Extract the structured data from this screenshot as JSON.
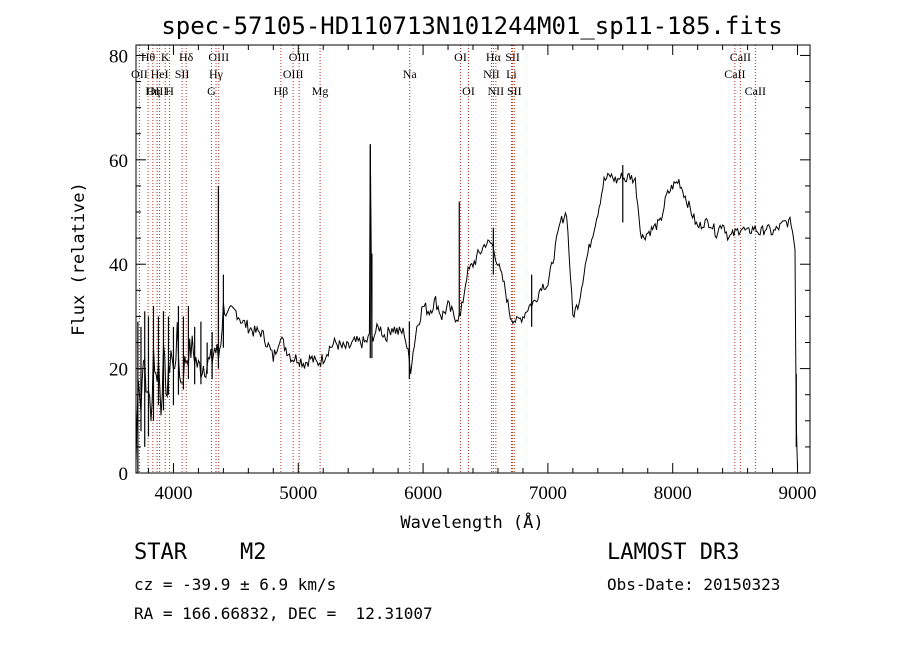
{
  "chart_data": {
    "type": "line",
    "title": "spec-57105-HD110713N101244M01_sp11-185.fits",
    "xlabel": "Wavelength (Å)",
    "ylabel": "Flux (relative)",
    "xlim": [
      3700,
      9100
    ],
    "ylim": [
      0,
      82
    ],
    "x_ticks": [
      4000,
      5000,
      6000,
      7000,
      8000,
      9000
    ],
    "y_ticks": [
      0,
      20,
      40,
      60,
      80
    ],
    "grid": false,
    "series": [
      {
        "x": [
          3700,
          3720,
          3740,
          3760,
          3780,
          3800,
          3820,
          3840,
          3860,
          3880,
          3900,
          3920,
          3950,
          3980,
          4000,
          4030,
          4060,
          4100,
          4150,
          4200,
          4250,
          4300,
          4330,
          4360,
          4380,
          4400,
          4430,
          4460,
          4500,
          4550,
          4600,
          4650,
          4700,
          4750,
          4800,
          4850,
          4900,
          4950,
          5000,
          5050,
          5100,
          5150,
          5200,
          5250,
          5300,
          5350,
          5400,
          5450,
          5500,
          5540,
          5570,
          5577,
          5590,
          5620,
          5650,
          5700,
          5750,
          5800,
          5850,
          5900,
          5950,
          6000,
          6050,
          6100,
          6150,
          6200,
          6250,
          6300,
          6350,
          6400,
          6450,
          6500,
          6550,
          6600,
          6650,
          6700,
          6750,
          6800,
          6850,
          6900,
          6950,
          7000,
          7050,
          7100,
          7150,
          7200,
          7250,
          7300,
          7350,
          7400,
          7450,
          7500,
          7550,
          7600,
          7620,
          7650,
          7700,
          7750,
          7800,
          7850,
          7900,
          7950,
          8000,
          8050,
          8100,
          8150,
          8200,
          8250,
          8300,
          8350,
          8400,
          8450,
          8500,
          8550,
          8600,
          8650,
          8700,
          8750,
          8800,
          8850,
          8900,
          8950,
          8980,
          8990,
          9000
        ],
        "y": [
          2,
          20,
          12,
          24,
          15,
          17,
          9,
          24,
          18,
          21,
          13,
          22,
          15,
          24,
          19,
          26,
          17,
          22,
          24,
          20,
          21,
          21,
          24,
          22,
          26,
          32,
          30,
          31,
          31,
          29,
          28,
          27,
          27,
          25,
          22,
          26,
          24,
          22,
          22,
          21,
          22,
          21,
          22,
          24,
          25,
          24,
          24,
          25,
          25,
          25,
          26,
          63,
          26,
          27,
          28,
          26,
          28,
          27,
          27,
          20,
          28,
          32,
          31,
          33,
          30,
          32,
          30,
          30,
          38,
          40,
          42,
          44,
          44,
          40,
          36,
          30,
          29,
          30,
          32,
          33,
          36,
          36,
          42,
          48,
          50,
          30,
          33,
          40,
          45,
          50,
          56,
          57,
          56,
          57,
          56,
          57,
          56,
          45,
          46,
          47,
          48,
          53,
          55,
          56,
          53,
          50,
          47,
          48,
          48,
          46,
          48,
          45,
          46,
          47,
          46,
          47,
          46,
          47,
          46,
          47,
          48,
          48,
          43,
          10,
          1
        ],
        "spikes": [
          [
            3715,
            0,
            29
          ],
          [
            3740,
            8,
            28
          ],
          [
            3770,
            5,
            31
          ],
          [
            3800,
            7,
            30
          ],
          [
            3840,
            10,
            32
          ],
          [
            3880,
            13,
            30
          ],
          [
            3920,
            12,
            31
          ],
          [
            3960,
            15,
            30
          ],
          [
            4000,
            13,
            28
          ],
          [
            4040,
            15,
            32
          ],
          [
            4080,
            16,
            30
          ],
          [
            4120,
            18,
            32
          ],
          [
            4170,
            17,
            28
          ],
          [
            4220,
            17,
            29
          ],
          [
            4270,
            19,
            25
          ],
          [
            4310,
            18,
            27
          ],
          [
            4360,
            20,
            55
          ],
          [
            4400,
            24,
            38
          ],
          [
            5577,
            22,
            63
          ],
          [
            5590,
            22,
            42
          ],
          [
            5890,
            18,
            29
          ],
          [
            6290,
            30,
            52
          ],
          [
            6563,
            38,
            47
          ],
          [
            6870,
            28,
            38
          ],
          [
            7600,
            48,
            59
          ],
          [
            8990,
            5,
            19
          ]
        ]
      }
    ],
    "spectral_lines": [
      {
        "label": "Hθ",
        "wave": 3797,
        "row": 1
      },
      {
        "label": "OII",
        "wave": 3727,
        "row": 2
      },
      {
        "label": "OIII",
        "wave": 3869,
        "row": 3
      },
      {
        "label": "K",
        "wave": 3934,
        "row": 1
      },
      {
        "label": "HeI",
        "wave": 3889,
        "row": 2
      },
      {
        "label": "Hη",
        "wave": 3835,
        "row": 3
      },
      {
        "label": "H",
        "wave": 3969,
        "row": 3
      },
      {
        "label": "SII",
        "wave": 4069,
        "row": 2
      },
      {
        "label": "Hδ",
        "wave": 4102,
        "row": 1
      },
      {
        "label": "OIII",
        "wave": 4363,
        "row": 1
      },
      {
        "label": "Hγ",
        "wave": 4341,
        "row": 2
      },
      {
        "label": "G",
        "wave": 4305,
        "row": 3
      },
      {
        "label": "Hβ",
        "wave": 4861,
        "row": 3
      },
      {
        "label": "OIII",
        "wave": 5007,
        "row": 1
      },
      {
        "label": "OIII",
        "wave": 4959,
        "row": 2
      },
      {
        "label": "Mg",
        "wave": 5175,
        "row": 3
      },
      {
        "label": "Na",
        "wave": 5893,
        "row": 2
      },
      {
        "label": "OI",
        "wave": 6300,
        "row": 1
      },
      {
        "label": "OI",
        "wave": 6364,
        "row": 3
      },
      {
        "label": "Hα",
        "wave": 6563,
        "row": 1
      },
      {
        "label": "NII",
        "wave": 6548,
        "row": 2
      },
      {
        "label": "NII",
        "wave": 6583,
        "row": 3
      },
      {
        "label": "SII",
        "wave": 6717,
        "row": 1
      },
      {
        "label": "Li",
        "wave": 6708,
        "row": 2
      },
      {
        "label": "SII",
        "wave": 6731,
        "row": 3
      },
      {
        "label": "CaII",
        "wave": 8542,
        "row": 1
      },
      {
        "label": "CaII",
        "wave": 8498,
        "row": 2
      },
      {
        "label": "CaII",
        "wave": 8662,
        "row": 3
      }
    ]
  },
  "info": {
    "object_class": "STAR",
    "subclass": "M2",
    "survey": "LAMOST DR3",
    "cz": "cz = -39.9 ± 6.9 km/s",
    "obs_date": "Obs-Date: 20150323",
    "coords": "RA = 166.66832, DEC =  12.31007"
  },
  "colors": {
    "spectrum": "#000000",
    "line_markers": "#b03020",
    "background": "#ffffff"
  }
}
